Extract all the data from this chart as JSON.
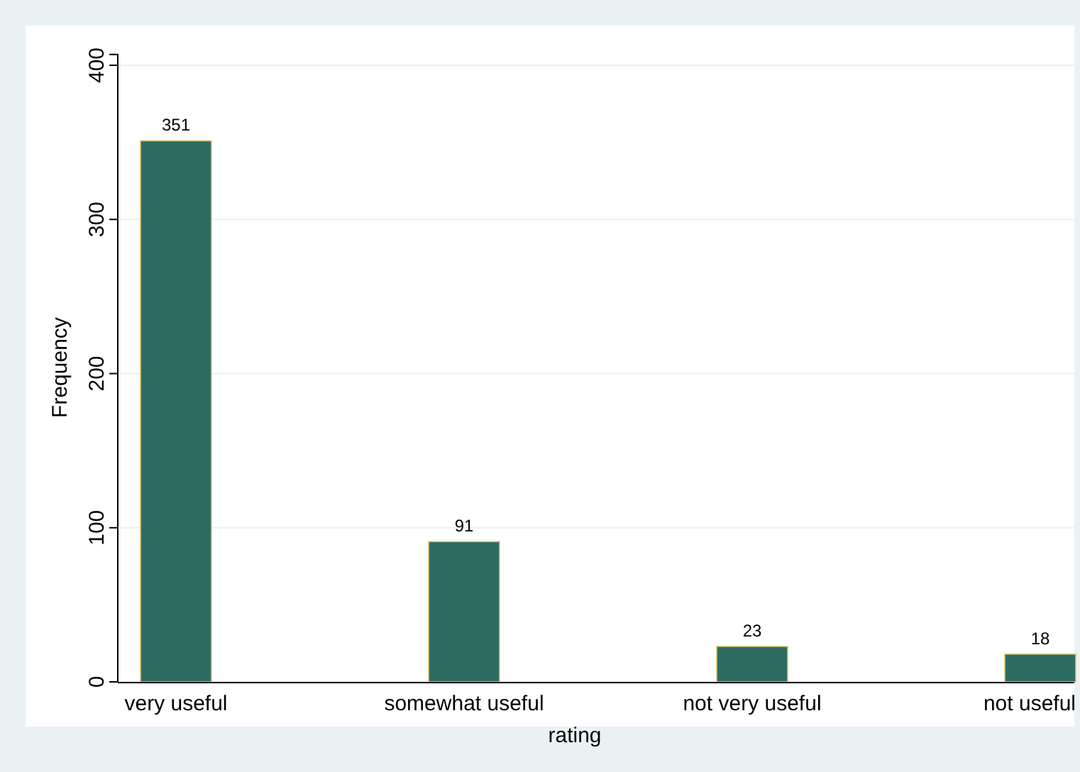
{
  "chart_data": {
    "type": "bar",
    "categories": [
      "very useful",
      "somewhat useful",
      "not very useful",
      "not useful"
    ],
    "values": [
      351,
      91,
      23,
      18
    ],
    "color": "#2e6b62",
    "xlabel": "rating",
    "ylabel": "Frequency",
    "ylim": [
      0,
      407
    ],
    "yticks": [
      0,
      100,
      200,
      300,
      400
    ],
    "grid": "y",
    "data_labels": true
  }
}
